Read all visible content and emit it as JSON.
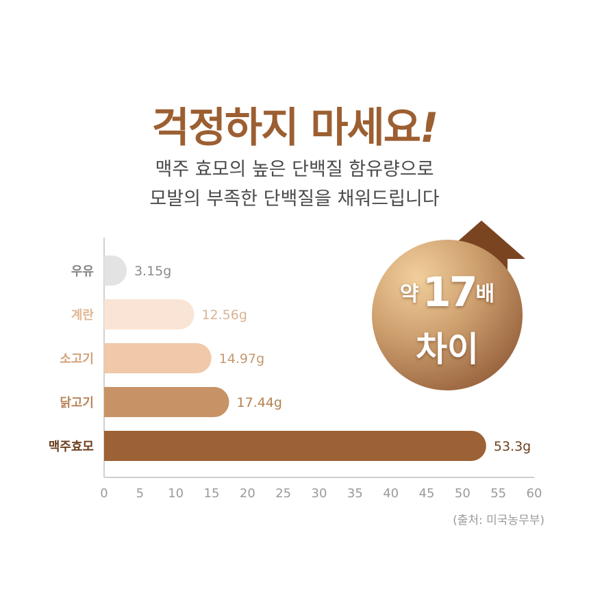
{
  "heading": {
    "main": "걱정하지 마세요",
    "mark": "!"
  },
  "subtitle": {
    "line1": "맥주 효모의 높은 단백질 함유량으로",
    "line2": "모발의 부족한 단백질을 채워드립니다"
  },
  "badge": {
    "prefix": "약",
    "number": "17",
    "suffix": "배",
    "line2": "차이"
  },
  "source": "(출처: 미국농무부)",
  "colors": {
    "title": "#9c5f32",
    "arrow": "#7a4421"
  },
  "chart_data": {
    "type": "bar",
    "orientation": "horizontal",
    "categories": [
      "우유",
      "계란",
      "소고기",
      "닭고기",
      "맥주효모"
    ],
    "values": [
      3.15,
      12.56,
      14.97,
      17.44,
      53.3
    ],
    "value_labels": [
      "3.15g",
      "12.56g",
      "14.97g",
      "17.44g",
      "53.3g"
    ],
    "bar_colors": [
      "#e3e3e3",
      "#f9e4d5",
      "#efc9a9",
      "#c79366",
      "#9c6135"
    ],
    "label_colors": [
      "#858585",
      "#e1b896",
      "#d0a27c",
      "#b9855b",
      "#6b3e1d"
    ],
    "value_label_colors": [
      "#8a8a8a",
      "#d8b393",
      "#c4996f",
      "#b4804f",
      "#6e3f1e"
    ],
    "xlim": [
      0,
      60
    ],
    "xticks": [
      "0",
      "5",
      "10",
      "15",
      "20",
      "25",
      "30",
      "35",
      "40",
      "45",
      "50",
      "55",
      "60"
    ],
    "xlabel": "",
    "ylabel": "",
    "grid": false
  }
}
